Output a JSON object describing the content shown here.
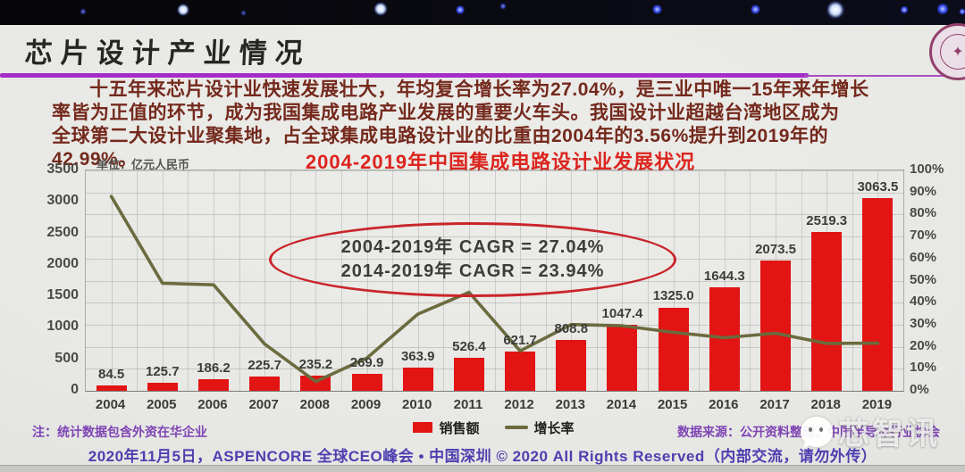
{
  "slide": {
    "title": "芯片设计产业情况",
    "paragraph_lines": [
      "十五年来芯片设计业快速发展壮大，年均复合增长率为27.04%，是三业中唯一15年来年增长",
      "率皆为正值的环节，成为我国集成电路产业发展的重要火车头。我国设计业超越台湾地区成为",
      "全球第二大设计业聚集地，占全球集成电路设计业的比重由2004年的3.56%提升到2019年的",
      "42.99%。"
    ],
    "note_left": "注：统计数据包含外资在华企业",
    "source_right": "数据来源：公开资料整理，中国半导体行业协会",
    "footer": "2020年11月5日，ASPENCORE 全球CEO峰会 • 中国深圳 © 2020 All Rights Reserved（内部交流，请勿外传）",
    "watermark_text": "芯智讯"
  },
  "chart_data": {
    "type": "bar",
    "subtype": "combo bar + line, dual axis",
    "title": "2004-2019年中国集成电路设计业发展状况",
    "unit_label": "单位：亿元人民币",
    "categories": [
      "2004",
      "2005",
      "2006",
      "2007",
      "2008",
      "2009",
      "2010",
      "2011",
      "2012",
      "2013",
      "2014",
      "2015",
      "2016",
      "2017",
      "2018",
      "2019"
    ],
    "series": [
      {
        "name": "销售额",
        "kind": "bar",
        "axis": "left",
        "color": "#e21414",
        "values": [
          84.5,
          125.7,
          186.2,
          225.7,
          235.2,
          269.9,
          363.9,
          526.4,
          621.7,
          808.8,
          1047.4,
          1325.0,
          1644.3,
          2073.5,
          2519.3,
          3063.5
        ],
        "value_labels": [
          "84.5",
          "125.7",
          "186.2",
          "225.7",
          "235.2",
          "269.9",
          "363.9",
          "526.4",
          "621.7",
          "808.8",
          "1047.4",
          "1325.0",
          "1644.3",
          "2073.5",
          "2519.3",
          "3063.5"
        ]
      },
      {
        "name": "增长率",
        "kind": "line",
        "axis": "right",
        "color": "#6b6b3e",
        "unit": "%",
        "values": [
          88.2,
          48.8,
          48.1,
          21.2,
          4.2,
          14.8,
          34.8,
          44.7,
          18.1,
          30.1,
          29.5,
          26.5,
          24.1,
          26.1,
          21.5,
          21.6
        ],
        "note": "values estimated from line position / YoY of bar values (no data labels shown)"
      }
    ],
    "left_axis": {
      "min": 0,
      "max": 3500,
      "step": 500,
      "tick_labels": [
        "0",
        "500",
        "1000",
        "1500",
        "2000",
        "2500",
        "3000",
        "3500"
      ]
    },
    "right_axis": {
      "min": 0,
      "max": 100,
      "step": 10,
      "tick_labels": [
        "0%",
        "10%",
        "20%",
        "30%",
        "40%",
        "50%",
        "60%",
        "70%",
        "80%",
        "90%",
        "100%"
      ]
    },
    "grid": true,
    "legend_position": "bottom",
    "annotation": {
      "line1": "2004-2019年  CAGR = 27.04%",
      "line2": "2014-2019年  CAGR = 23.94%"
    }
  },
  "colors": {
    "accent_purple_rule": "#a52cc8",
    "chart_title_red": "#dd241e",
    "bar_red": "#e21414",
    "growth_line_olive": "#6b6b3e",
    "body_text_maroon": "#74291c",
    "note_purple": "#7e44b4",
    "footer_purple": "#4e3fb0",
    "ellipse_red": "#c9252b"
  }
}
